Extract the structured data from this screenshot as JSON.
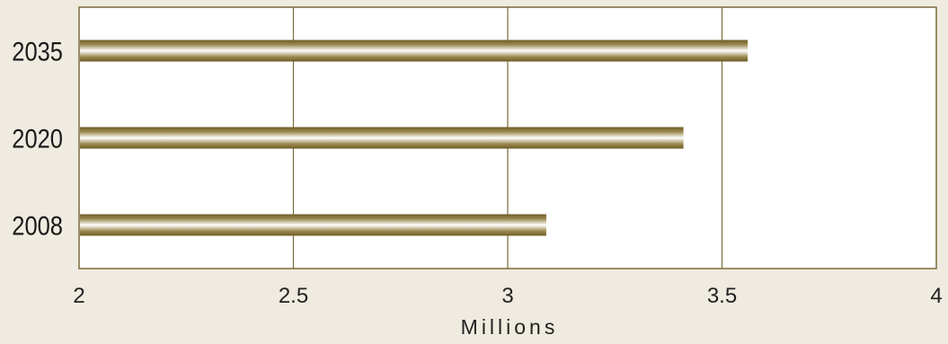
{
  "chart_data": {
    "type": "bar",
    "orientation": "horizontal",
    "categories": [
      "2035",
      "2020",
      "2008"
    ],
    "values": [
      3.56,
      3.41,
      3.09
    ],
    "xlabel": "Millions",
    "ylabel": "",
    "xlim": [
      2,
      4
    ],
    "xticks": [
      "2",
      "2.5",
      "3",
      "3.5",
      "4"
    ],
    "grid": "vertical",
    "colors": {
      "background": "#efebe0",
      "plot_background": "#ffffff",
      "gridline": "#7a6a3a",
      "bar_dark": "#6e5c26",
      "bar_light": "#ffffff"
    }
  }
}
